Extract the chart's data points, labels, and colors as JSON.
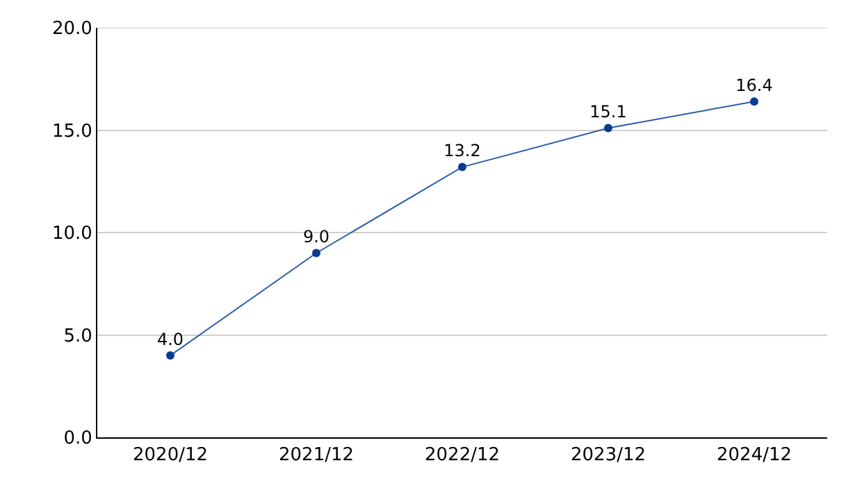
{
  "chart_data": {
    "type": "line",
    "categories": [
      "2020/12",
      "2021/12",
      "2022/12",
      "2023/12",
      "2024/12"
    ],
    "series": [
      {
        "color": "#2a5caa",
        "values": [
          4.0,
          9.0,
          13.2,
          15.1,
          16.4
        ],
        "value_labels": [
          "4.0",
          "9.0",
          "13.2",
          "15.1",
          "16.4"
        ]
      }
    ],
    "ylim": [
      0,
      20
    ],
    "yticks": [
      {
        "value": 0,
        "label": "0.0"
      },
      {
        "value": 5,
        "label": "5.0"
      },
      {
        "value": 10,
        "label": "10.0"
      },
      {
        "value": 15,
        "label": "15.0"
      },
      {
        "value": 20,
        "label": "20.0"
      }
    ],
    "grid": "y",
    "marker": "circle",
    "line_style": "solid"
  }
}
